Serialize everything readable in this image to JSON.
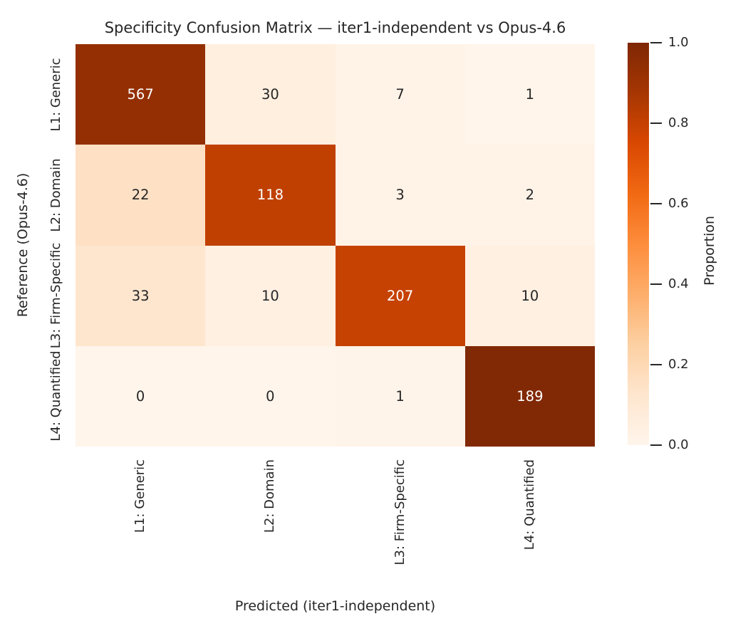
{
  "chart_data": {
    "type": "heatmap",
    "title": "Specificity Confusion Matrix — iter1-independent vs Opus-4.6",
    "xlabel": "Predicted (iter1-independent)",
    "ylabel": "Reference (Opus-4.6)",
    "x_categories": [
      "L1: Generic",
      "L2: Domain",
      "L3: Firm-Specific",
      "L4: Quantified"
    ],
    "y_categories": [
      "L1: Generic",
      "L2: Domain",
      "L3: Firm-Specific",
      "L4: Quantified"
    ],
    "values": [
      [
        567,
        30,
        7,
        1
      ],
      [
        22,
        118,
        3,
        2
      ],
      [
        33,
        10,
        207,
        10
      ],
      [
        0,
        0,
        1,
        189
      ]
    ],
    "row_proportions": [
      [
        0.937,
        0.05,
        0.012,
        0.002
      ],
      [
        0.152,
        0.814,
        0.021,
        0.014
      ],
      [
        0.127,
        0.038,
        0.796,
        0.038
      ],
      [
        0.0,
        0.0,
        0.005,
        0.995
      ]
    ],
    "colormap": "Oranges",
    "cell_colors": [
      [
        "#932f03",
        "#ffefdf",
        "#fff3e8",
        "#fff5ea"
      ],
      [
        "#fee1c5",
        "#c04002",
        "#fff2e6",
        "#fff3e8"
      ],
      [
        "#fee6ce",
        "#fff0e2",
        "#c64202",
        "#fff0e2"
      ],
      [
        "#fff5eb",
        "#fff5eb",
        "#fff4ea",
        "#812804"
      ]
    ],
    "cell_text_colors": [
      [
        "#ffffff",
        "#262626",
        "#262626",
        "#262626"
      ],
      [
        "#262626",
        "#ffffff",
        "#262626",
        "#262626"
      ],
      [
        "#262626",
        "#262626",
        "#ffffff",
        "#262626"
      ],
      [
        "#262626",
        "#262626",
        "#262626",
        "#ffffff"
      ]
    ],
    "colorbar": {
      "label": "Proportion",
      "ticks": [
        "1.0",
        "0.8",
        "0.6",
        "0.4",
        "0.2",
        "0.0"
      ],
      "range": [
        0.0,
        1.0
      ],
      "gradient_stops": [
        "#fff5eb",
        "#fee6ce",
        "#fdd0a2",
        "#fdae6b",
        "#fd8d3c",
        "#f16913",
        "#d94801",
        "#a63603",
        "#7f2704"
      ]
    },
    "legend_position": "right-colorbar",
    "grid": false,
    "text_color": "#262626"
  }
}
